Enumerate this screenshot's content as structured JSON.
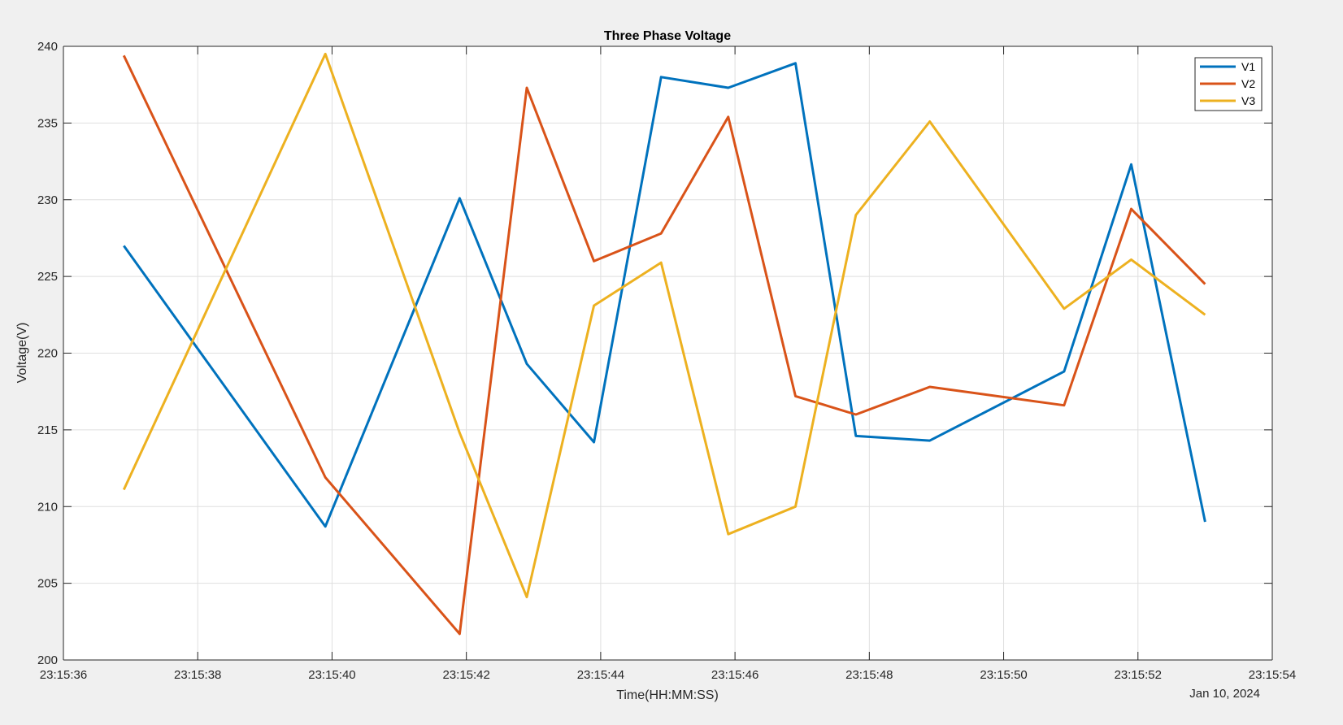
{
  "chart_data": {
    "type": "line",
    "title": "Three Phase Voltage",
    "xlabel": "Time(HH:MM:SS)",
    "ylabel": "Voltage(V)",
    "date_label": "Jan 10, 2024",
    "xlim": [
      "23:15:36",
      "23:15:54"
    ],
    "ylim": [
      200,
      240
    ],
    "x_ticks": [
      "23:15:36",
      "23:15:38",
      "23:15:40",
      "23:15:42",
      "23:15:44",
      "23:15:46",
      "23:15:48",
      "23:15:50",
      "23:15:52",
      "23:15:54"
    ],
    "y_ticks": [
      200,
      205,
      210,
      215,
      220,
      225,
      230,
      235,
      240
    ],
    "grid": true,
    "legend_position": "top-right",
    "x": [
      "23:15:36.9",
      "23:15:39.9",
      "23:15:41.9",
      "23:15:42.9",
      "23:15:43.9",
      "23:15:44.9",
      "23:15:45.9",
      "23:15:46.9",
      "23:15:47.8",
      "23:15:48.9",
      "23:15:50.9",
      "23:15:51.9",
      "23:15:53.0"
    ],
    "series": [
      {
        "name": "V1",
        "color": "#0072BD",
        "values": [
          227.0,
          208.7,
          230.1,
          219.3,
          214.2,
          238.0,
          237.3,
          238.9,
          214.6,
          214.3,
          218.8,
          232.3,
          209.0
        ]
      },
      {
        "name": "V2",
        "color": "#D95319",
        "values": [
          239.4,
          211.9,
          201.7,
          237.3,
          226.0,
          227.8,
          235.4,
          217.2,
          216.0,
          217.8,
          216.6,
          229.4,
          224.5
        ]
      },
      {
        "name": "V3",
        "color": "#EDB120",
        "values": [
          211.1,
          239.5,
          214.8,
          204.1,
          223.1,
          225.9,
          208.2,
          210.0,
          229.0,
          235.1,
          222.9,
          226.1,
          222.5
        ]
      }
    ]
  }
}
